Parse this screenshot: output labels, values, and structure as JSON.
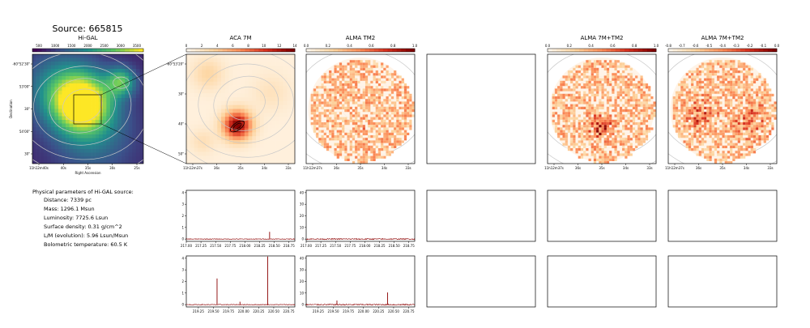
{
  "figure": {
    "title": "Source: 665815",
    "params_header": "Physical parameters of Hi-GAL source:",
    "params": [
      "Distance: 7339 pc",
      "Mass: 1296.1 Msun",
      "Luminosity: 7725.6 Lsun",
      "Surface density: 0.31 g/cm^2",
      "L/M (evolution): 5.96 Lsun/Msun",
      "Bolometric temperature: 60.5 K"
    ],
    "colors": {
      "spectrum": "#8b0000",
      "contour": "#c8c8c8",
      "frame": "#000000"
    }
  },
  "chart_data": [
    {
      "type": "heatmap",
      "id": "higal",
      "title": "Hi-GAL",
      "colormap": "viridis",
      "colorbar_ticks": [
        "500",
        "1000",
        "1500",
        "2000",
        "2500",
        "3000",
        "3500"
      ],
      "colorbar_range": [
        300,
        3700
      ],
      "xlabel": "Right Ascension",
      "ylabel": "Declination",
      "xticks": [
        "11h12m40s",
        "40s",
        "35s",
        "30s",
        "25s"
      ],
      "yticks": [
        "-60°52'30\"",
        "53'00\"",
        "30\"",
        "54'00\"",
        "30\""
      ]
    },
    {
      "type": "heatmap",
      "id": "aca",
      "title": "ACA 7M",
      "colormap": "OrRd",
      "colorbar_ticks": [
        "0",
        "2",
        "4",
        "6",
        "8",
        "10",
        "12",
        "14"
      ],
      "colorbar_range": [
        0,
        14
      ],
      "xticks": [
        "11h12m37s",
        "36s",
        "35s",
        "34s",
        "33s"
      ],
      "yticks": [
        "-60°53'20\"",
        "30\"",
        "40\"",
        "50\""
      ]
    },
    {
      "type": "heatmap",
      "id": "alma_tm2",
      "title": "ALMA TM2",
      "colormap": "OrRd",
      "colorbar_ticks": [
        "0.0",
        "0.2",
        "0.4",
        "0.6",
        "0.8",
        "1.0"
      ],
      "colorbar_range": [
        0,
        1
      ],
      "xticks": [
        "11h12m37s",
        "36s",
        "35s",
        "34s",
        "33s"
      ]
    },
    {
      "type": "heatmap",
      "id": "empty_map",
      "title": ""
    },
    {
      "type": "heatmap",
      "id": "alma_7m_tm2",
      "title": "ALMA 7M+TM2",
      "colormap": "OrRd",
      "colorbar_ticks": [
        "0.0",
        "0.2",
        "0.4",
        "0.6",
        "0.8",
        "1.0"
      ],
      "colorbar_range": [
        0,
        1
      ],
      "xticks": [
        "11h12m37s",
        "36s",
        "35s",
        "34s",
        "33s"
      ]
    },
    {
      "type": "heatmap",
      "id": "alma_7m_tm2_b",
      "title": "ALMA 7M+TM2",
      "colormap": "OrRd",
      "colorbar_ticks": [
        "-0.8",
        "-0.7",
        "-0.6",
        "-0.5",
        "-0.4",
        "-0.3",
        "-0.2",
        "-0.1",
        "0.0"
      ],
      "colorbar_range": [
        -0.8,
        0
      ],
      "xticks": [
        "11h12m37s",
        "36s",
        "35s",
        "34s",
        "33s"
      ]
    },
    {
      "type": "line",
      "id": "spec_aca_1",
      "xlim": [
        217.0,
        218.85
      ],
      "ylim": [
        -0.2,
        4.2
      ],
      "xticks": [
        "217.00",
        "217.25",
        "217.50",
        "217.75",
        "218.00",
        "218.25",
        "218.50",
        "218.75"
      ],
      "yticks": [
        "0",
        "1",
        "2",
        "3",
        "4"
      ],
      "noise": 0.03,
      "peaks": [
        [
          218.42,
          0.62
        ]
      ]
    },
    {
      "type": "line",
      "id": "spec_tm2_1",
      "xlim": [
        217.0,
        218.85
      ],
      "ylim": [
        -2,
        42
      ],
      "xticks": [
        "217.00",
        "217.25",
        "217.50",
        "217.75",
        "218.00",
        "218.25",
        "218.50",
        "218.75"
      ],
      "yticks": [
        "0",
        "10",
        "20",
        "30",
        "40"
      ],
      "noise": 0.5,
      "peaks": []
    },
    {
      "type": "line",
      "id": "spec_aca_2",
      "xlim": [
        219.05,
        220.85
      ],
      "ylim": [
        -0.2,
        4.2
      ],
      "xticks": [
        "219.25",
        "219.50",
        "219.75",
        "220.00",
        "220.25",
        "220.50",
        "220.75"
      ],
      "yticks": [
        "0",
        "1",
        "2",
        "3",
        "4"
      ],
      "noise": 0.03,
      "peaks": [
        [
          219.56,
          2.25
        ],
        [
          219.94,
          0.25
        ],
        [
          220.4,
          4.15
        ]
      ]
    },
    {
      "type": "line",
      "id": "spec_tm2_2",
      "xlim": [
        219.05,
        220.85
      ],
      "ylim": [
        -2,
        42
      ],
      "xticks": [
        "219.25",
        "219.50",
        "219.75",
        "220.00",
        "220.25",
        "220.50",
        "220.75"
      ],
      "yticks": [
        "0",
        "10",
        "20",
        "30",
        "40"
      ],
      "noise": 0.5,
      "peaks": [
        [
          219.56,
          3.5
        ],
        [
          220.4,
          10.5
        ]
      ]
    }
  ]
}
